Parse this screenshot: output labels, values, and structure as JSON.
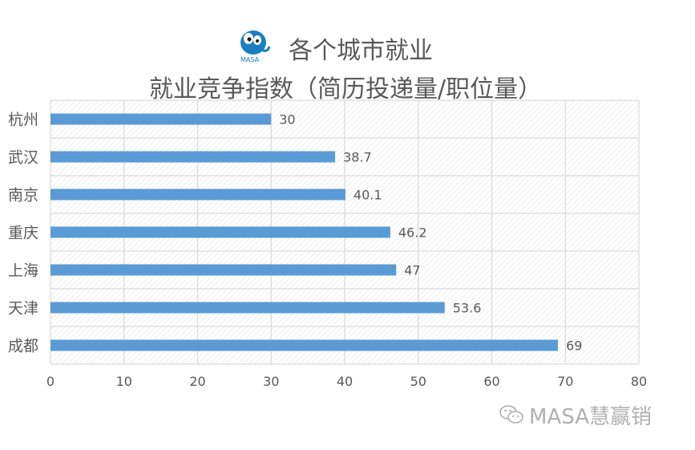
{
  "header": {
    "logo_text": "MASA",
    "title_line1": "各个城市就业",
    "title_line2": "就业竞争指数（简历投递量/职位量）"
  },
  "watermark": {
    "text": "MASA慧赢销"
  },
  "colors": {
    "bar": "#5b9bd5",
    "grid": "#d9d9d9",
    "text": "#595959",
    "accent": "#1a7fc1"
  },
  "chart_data": {
    "type": "bar",
    "orientation": "horizontal",
    "title": "各个城市就业 就业竞争指数（简历投递量/职位量）",
    "categories": [
      "杭州",
      "武汉",
      "南京",
      "重庆",
      "上海",
      "天津",
      "成都"
    ],
    "values": [
      30,
      38.7,
      40.1,
      46.2,
      47,
      53.6,
      69
    ],
    "data_labels": [
      "30",
      "38.7",
      "40.1",
      "46.2",
      "47",
      "53.6",
      "69"
    ],
    "xlim": [
      0,
      80
    ],
    "x_ticks": [
      "0",
      "10",
      "20",
      "30",
      "40",
      "50",
      "60",
      "70",
      "80"
    ],
    "grid": true
  }
}
